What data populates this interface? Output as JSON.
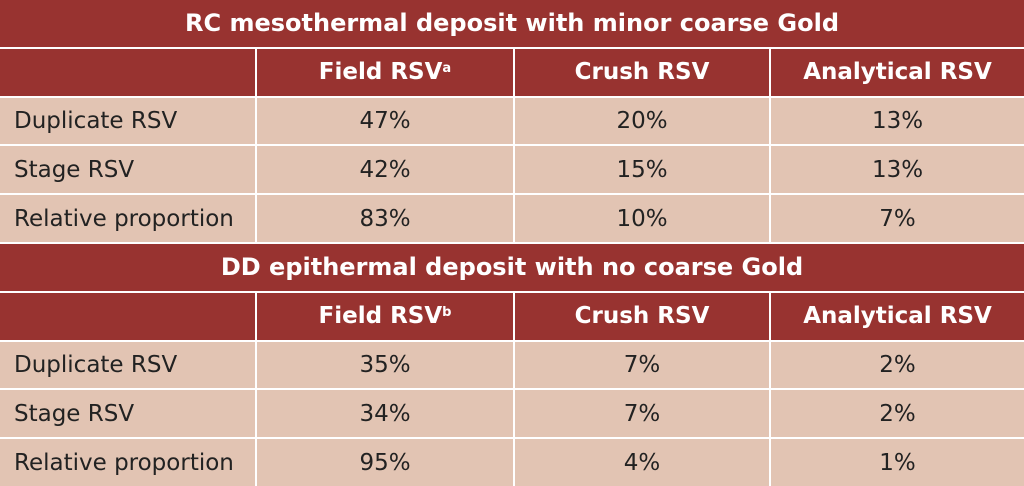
{
  "sections": [
    {
      "title": "RC mesothermal deposit with minor coarse Gold",
      "headers": [
        "",
        "Field RSV",
        "Crush RSV",
        "Analytical RSV"
      ],
      "field_sup": "a",
      "rows": [
        {
          "label": "Duplicate RSV",
          "values": [
            "47%",
            "20%",
            "13%"
          ]
        },
        {
          "label": "Stage RSV",
          "values": [
            "42%",
            "15%",
            "13%"
          ]
        },
        {
          "label": "Relative proportion",
          "values": [
            "83%",
            "10%",
            "7%"
          ]
        }
      ]
    },
    {
      "title": "DD epithermal deposit with no coarse Gold",
      "headers": [
        "",
        "Field RSV",
        "Crush RSV",
        "Analytical RSV"
      ],
      "field_sup": "b",
      "rows": [
        {
          "label": "Duplicate RSV",
          "values": [
            "35%",
            "7%",
            "2%"
          ]
        },
        {
          "label": "Stage RSV",
          "values": [
            "34%",
            "7%",
            "2%"
          ]
        },
        {
          "label": "Relative proportion",
          "values": [
            "95%",
            "4%",
            "1%"
          ]
        }
      ]
    }
  ],
  "colors": {
    "header": "#983330",
    "cell": "#e2c4b3"
  }
}
